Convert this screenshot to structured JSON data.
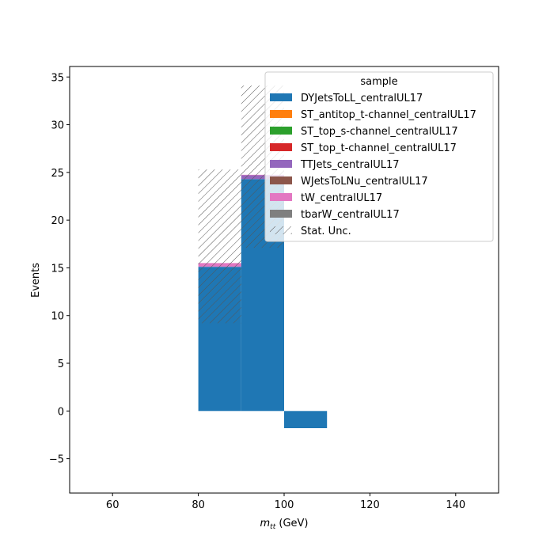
{
  "chart_data": {
    "type": "bar",
    "subtype": "stacked-histogram",
    "xlabel_main": "m",
    "xlabel_sub": "tt",
    "xlabel_unit": " (GeV)",
    "ylabel": "Events",
    "xlim": [
      50,
      150
    ],
    "ylim": [
      -8.6,
      36.1
    ],
    "xticks": [
      60,
      80,
      100,
      120,
      140
    ],
    "yticks": [
      -5,
      0,
      5,
      10,
      15,
      20,
      25,
      30,
      35
    ],
    "bin_edges": [
      80,
      90,
      100,
      110
    ],
    "series": [
      {
        "name": "DYJetsToLL_centralUL17",
        "color": "#1f77b4",
        "values": [
          15.1,
          24.3,
          -1.8
        ]
      },
      {
        "name": "ST_antitop_t-channel_centralUL17",
        "color": "#ff7f0e",
        "values": [
          0,
          0,
          0
        ]
      },
      {
        "name": "ST_top_s-channel_centralUL17",
        "color": "#2ca02c",
        "values": [
          0,
          0,
          0
        ]
      },
      {
        "name": "ST_top_t-channel_centralUL17",
        "color": "#d62728",
        "values": [
          0,
          0,
          0
        ]
      },
      {
        "name": "TTJets_centralUL17",
        "color": "#9467bd",
        "values": [
          0.05,
          0.4,
          0
        ]
      },
      {
        "name": "WJetsToLNu_centralUL17",
        "color": "#8c564b",
        "values": [
          0,
          0,
          0
        ]
      },
      {
        "name": "tW_centralUL17",
        "color": "#e377c2",
        "values": [
          0.35,
          0.05,
          0
        ]
      },
      {
        "name": "tbarW_centralUL17",
        "color": "#7f7f7f",
        "values": [
          0,
          0,
          0
        ]
      }
    ],
    "uncertainty": {
      "name": "Stat. Unc.",
      "low": [
        9.2,
        17.1
      ],
      "high": [
        25.3,
        34.1
      ]
    },
    "legend": {
      "title": "sample",
      "placement": "top-right"
    },
    "grid": false
  }
}
